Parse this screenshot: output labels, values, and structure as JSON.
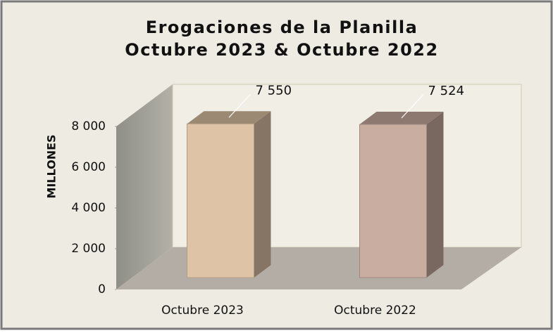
{
  "chart_data": {
    "type": "bar3d",
    "title": "Erogaciones de la Planilla",
    "subtitle": "Octubre 2023 & Octubre 2022",
    "y_label": "MILLONES",
    "categories": [
      "Octubre 2023",
      "Octubre 2022"
    ],
    "values": [
      7550,
      7524
    ],
    "value_labels": [
      "7 550",
      "7 524"
    ],
    "colors": [
      "#dfc3a6",
      "#c9ada0"
    ],
    "ylim": [
      0,
      8000
    ],
    "yticks": [
      0,
      {
        "value": 2000,
        "label": "2 000"
      },
      {
        "value": 4000,
        "label": "4 000"
      },
      {
        "value": 6000,
        "label": "6 000"
      },
      {
        "value": 8000,
        "label": "8 000"
      }
    ]
  }
}
